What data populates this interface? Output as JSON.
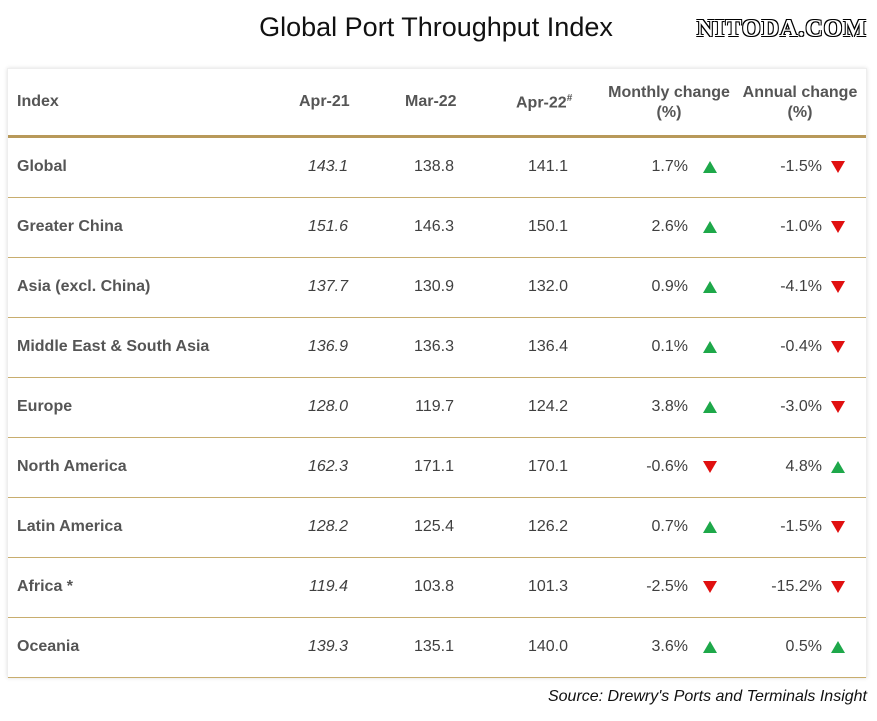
{
  "title": "Global Port Throughput Index",
  "watermark": "NITODA.COM",
  "source": "Source: Drewry's Ports and Terminals Insight",
  "colors": {
    "up": "#1ea84a",
    "down": "#e01010",
    "rule": "#b8995a"
  },
  "chart_data": {
    "type": "table",
    "columns": {
      "index": "Index",
      "apr21": "Apr-21",
      "mar22": "Mar-22",
      "apr22": "Apr-22",
      "apr22_mark": "#",
      "monthly_line1": "Monthly change",
      "monthly_line2": "(%)",
      "annual_line1": "Annual change",
      "annual_line2": "(%)"
    },
    "rows": [
      {
        "region": "Global",
        "apr21": "143.1",
        "mar22": "138.8",
        "apr22": "141.1",
        "monthly": "1.7%",
        "monthly_dir": "up",
        "annual": "-1.5%",
        "annual_dir": "down"
      },
      {
        "region": "Greater China",
        "apr21": "151.6",
        "mar22": "146.3",
        "apr22": "150.1",
        "monthly": "2.6%",
        "monthly_dir": "up",
        "annual": "-1.0%",
        "annual_dir": "down"
      },
      {
        "region": "Asia (excl. China)",
        "apr21": "137.7",
        "mar22": "130.9",
        "apr22": "132.0",
        "monthly": "0.9%",
        "monthly_dir": "up",
        "annual": "-4.1%",
        "annual_dir": "down"
      },
      {
        "region": "Middle East & South Asia",
        "apr21": "136.9",
        "mar22": "136.3",
        "apr22": "136.4",
        "monthly": "0.1%",
        "monthly_dir": "up",
        "annual": "-0.4%",
        "annual_dir": "down"
      },
      {
        "region": "Europe",
        "apr21": "128.0",
        "mar22": "119.7",
        "apr22": "124.2",
        "monthly": "3.8%",
        "monthly_dir": "up",
        "annual": "-3.0%",
        "annual_dir": "down"
      },
      {
        "region": "North America",
        "apr21": "162.3",
        "mar22": "171.1",
        "apr22": "170.1",
        "monthly": "-0.6%",
        "monthly_dir": "down",
        "annual": "4.8%",
        "annual_dir": "up"
      },
      {
        "region": "Latin America",
        "apr21": "128.2",
        "mar22": "125.4",
        "apr22": "126.2",
        "monthly": "0.7%",
        "monthly_dir": "up",
        "annual": "-1.5%",
        "annual_dir": "down"
      },
      {
        "region": "Africa *",
        "apr21": "119.4",
        "mar22": "103.8",
        "apr22": "101.3",
        "monthly": "-2.5%",
        "monthly_dir": "down",
        "annual": "-15.2%",
        "annual_dir": "down"
      },
      {
        "region": "Oceania",
        "apr21": "139.3",
        "mar22": "135.1",
        "apr22": "140.0",
        "monthly": "3.6%",
        "monthly_dir": "up",
        "annual": "0.5%",
        "annual_dir": "up"
      }
    ]
  }
}
